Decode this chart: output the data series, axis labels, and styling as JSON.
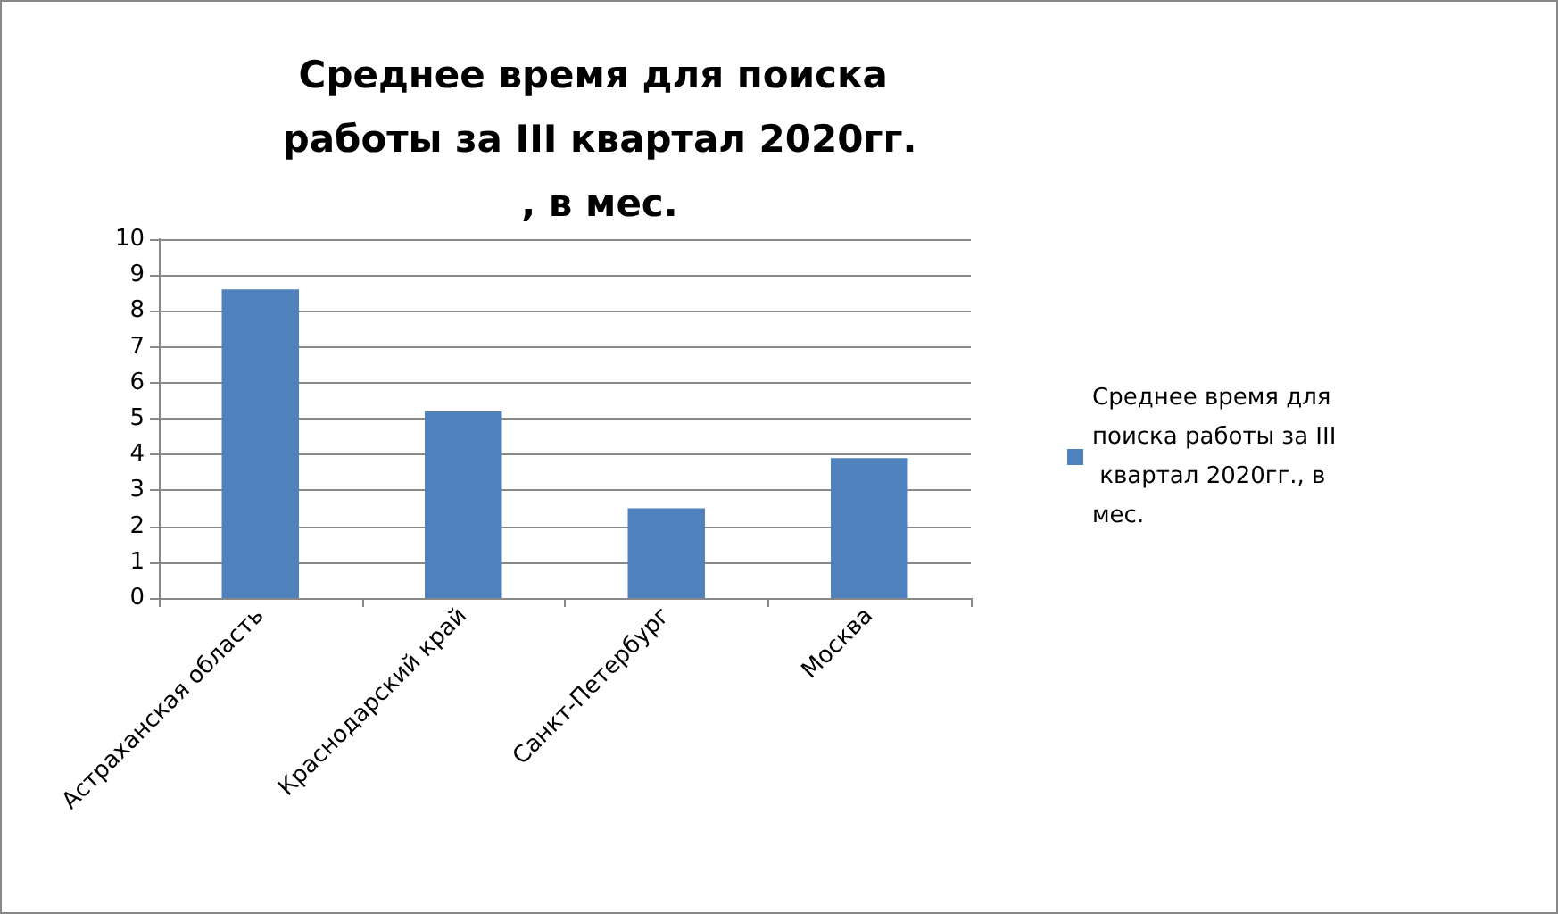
{
  "chart_data": {
    "type": "bar",
    "title": "Среднее время для поиска работы за III квартал 2020гг., в мес.",
    "categories": [
      "Астраханская область",
      "Краснодарский край",
      "Санкт-Петербург",
      "Москва"
    ],
    "series": [
      {
        "name": "Среднее время для поиска работы за III квартал 2020гг., в мес.",
        "color": "#4f81bd",
        "values": [
          8.6,
          5.2,
          2.5,
          3.9
        ]
      }
    ],
    "ylim": [
      0,
      10
    ],
    "yticks": [
      0,
      1,
      2,
      3,
      4,
      5,
      6,
      7,
      8,
      9,
      10
    ],
    "grid": "y",
    "legend": "right"
  }
}
